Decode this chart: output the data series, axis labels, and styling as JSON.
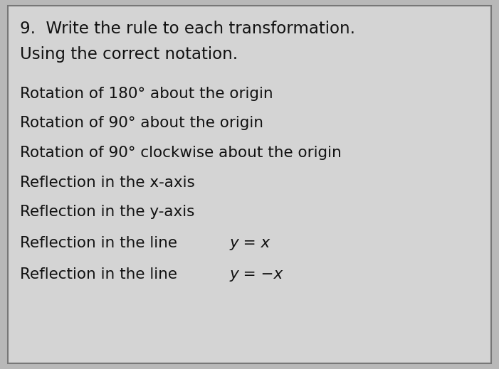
{
  "title_line1": "9.  Write the rule to each transformation.",
  "title_line2": "Using the correct notation.",
  "plain_items": [
    "Rotation of 180° about the origin",
    "Rotation of 90° about the origin",
    "Rotation of 90° clockwise about the origin",
    "Reflection in the x-axis",
    "Reflection in the y-axis"
  ],
  "mixed_items": [
    {
      "prefix": "Reflection in the line ",
      "math": "y = x"
    },
    {
      "prefix": "Reflection in the line ",
      "math": "y = −x"
    }
  ],
  "bg_color": "#b8b8b8",
  "card_color": "#d4d4d4",
  "text_color": "#111111",
  "border_color": "#777777",
  "title_fontsize": 16.5,
  "item_fontsize": 15.5,
  "fig_width": 7.01,
  "fig_height": 5.19,
  "dpi": 100
}
